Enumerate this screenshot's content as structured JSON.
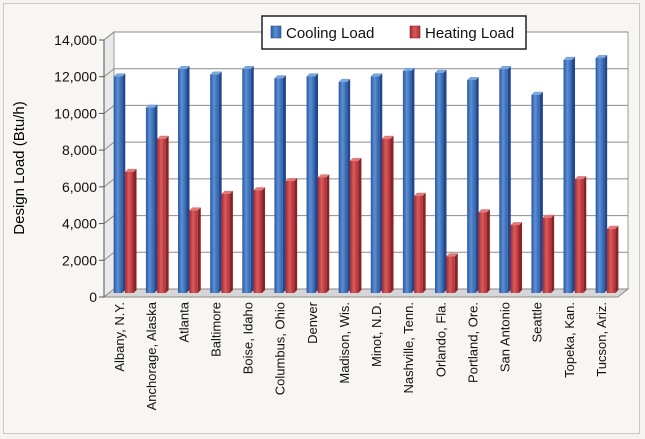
{
  "chart_data": {
    "type": "bar",
    "title": "",
    "xlabel": "",
    "ylabel": "Design Load (Btu/h)",
    "ylim": [
      0,
      14000
    ],
    "yticks": [
      "0",
      "2,000",
      "4,000",
      "6,000",
      "8,000",
      "10,000",
      "12,000",
      "14,000"
    ],
    "ytick_values": [
      0,
      2000,
      4000,
      6000,
      8000,
      10000,
      12000,
      14000
    ],
    "grid": true,
    "legend_position": "top-center",
    "categories": [
      "Albany, N.Y.",
      "Anchorage, Alaska",
      "Atlanta",
      "Baltimore",
      "Boise, Idaho",
      "Columbus, Ohio",
      "Denver",
      "Madison, Wis.",
      "Minot, N.D.",
      "Nashville, Tenn.",
      "Orlando, Fla.",
      "Portland, Ore.",
      "San Antonio",
      "Seattle",
      "Topeka, Kan.",
      "Tucson, Ariz."
    ],
    "series": [
      {
        "name": "Cooling Load",
        "color": "#3f6fb5",
        "values": [
          11800,
          10100,
          12200,
          11900,
          12200,
          11700,
          11800,
          11500,
          11800,
          12100,
          12000,
          11600,
          12200,
          10800,
          12700,
          12800
        ]
      },
      {
        "name": "Heating Load",
        "color": "#c0393b",
        "values": [
          6600,
          8400,
          4500,
          5400,
          5600,
          6100,
          6300,
          7200,
          8400,
          5300,
          2000,
          4400,
          3700,
          4100,
          6200,
          3500
        ]
      }
    ]
  }
}
